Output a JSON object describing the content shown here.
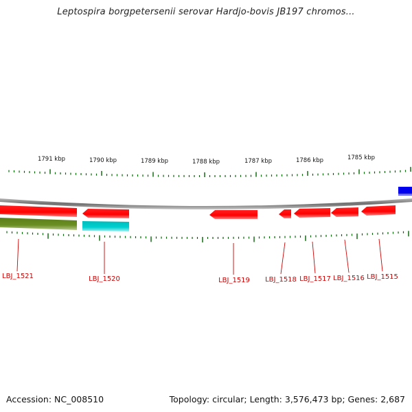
{
  "title": "Leptospira borgpetersenii serovar Hardjo-bovis JB197 chromos...",
  "footer": {
    "accession": "Accession: NC_008510",
    "summary": "Topology: circular; Length: 3,576,473 bp; Genes: 2,687"
  },
  "colors": {
    "backbone": "#8a8a8a",
    "forward_gene": "#ff0000",
    "reverse_gene": "#ff0000",
    "cds_olive": "#6b8e23",
    "cds_cyan": "#00cccc",
    "blue_feature": "#0000ee",
    "tick": "#006400",
    "label_line": "#cc0000",
    "label_text": "#cc0000"
  },
  "ruler_labels": [
    "1791 kbp",
    "1790 kbp",
    "1789 kbp",
    "1788 kbp",
    "1787 kbp",
    "1786 kbp",
    "1785 kbp"
  ],
  "genes": [
    {
      "id": "lbj-1521",
      "label": "LBJ_1521"
    },
    {
      "id": "lbj-1520",
      "label": "LBJ_1520"
    },
    {
      "id": "lbj-1519",
      "label": "LBJ_1519"
    },
    {
      "id": "lbj-1518",
      "label": "LBJ_1518"
    },
    {
      "id": "lbj-1517",
      "label": "LBJ_1517"
    },
    {
      "id": "lbj-1516",
      "label": "LBJ_1516"
    },
    {
      "id": "lbj-1515",
      "label": "LBJ_1515"
    }
  ]
}
